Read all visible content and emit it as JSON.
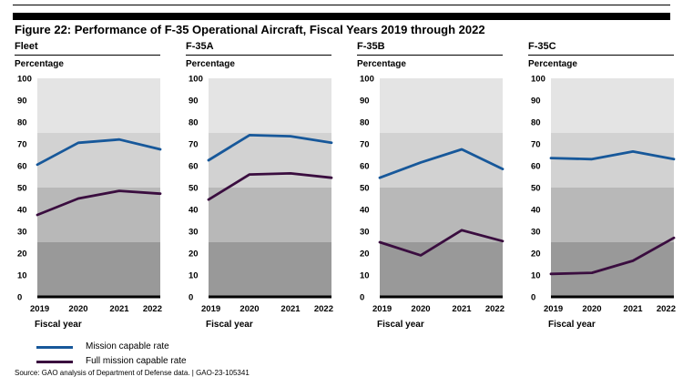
{
  "figure_title": "Figure 22: Performance of F-35 Operational Aircraft, Fiscal Years 2019 through 2022",
  "colors": {
    "mission_capable": "#17589a",
    "full_mission_capable": "#3a0d3f",
    "band_top": "#e4e4e4",
    "band_upper_mid": "#d2d2d2",
    "band_lower_mid": "#b8b8b8",
    "band_bottom": "#999999"
  },
  "legend": [
    {
      "label": "Mission capable rate",
      "color": "#17589a"
    },
    {
      "label": "Full mission capable rate",
      "color": "#3a0d3f"
    }
  ],
  "source": "Source: GAO analysis of Department of Defense data.  |  GAO-23-105341",
  "chart_data": [
    {
      "type": "line",
      "title": "Fleet",
      "ylabel": "Percentage",
      "xlabel": "Fiscal year",
      "x": [
        "2019",
        "2020",
        "2021",
        "2022"
      ],
      "ylim": [
        0,
        100
      ],
      "yticks": [
        0,
        10,
        20,
        30,
        40,
        50,
        60,
        70,
        80,
        90,
        100
      ],
      "series": [
        {
          "name": "Mission capable rate",
          "values": [
            60.5,
            70.5,
            72,
            67.5
          ]
        },
        {
          "name": "Full mission capable rate",
          "values": [
            37.5,
            45,
            48.5,
            47.2
          ]
        }
      ]
    },
    {
      "type": "line",
      "title": "F-35A",
      "ylabel": "Percentage",
      "xlabel": "Fiscal year",
      "x": [
        "2019",
        "2020",
        "2021",
        "2022"
      ],
      "ylim": [
        0,
        100
      ],
      "yticks": [
        0,
        10,
        20,
        30,
        40,
        50,
        60,
        70,
        80,
        90,
        100
      ],
      "series": [
        {
          "name": "Mission capable rate",
          "values": [
            62.5,
            74,
            73.5,
            70.5
          ]
        },
        {
          "name": "Full mission capable rate",
          "values": [
            44.5,
            56,
            56.5,
            54.5
          ]
        }
      ]
    },
    {
      "type": "line",
      "title": "F-35B",
      "ylabel": "Percentage",
      "xlabel": "Fiscal year",
      "x": [
        "2019",
        "2020",
        "2021",
        "2022"
      ],
      "ylim": [
        0,
        100
      ],
      "yticks": [
        0,
        10,
        20,
        30,
        40,
        50,
        60,
        70,
        80,
        90,
        100
      ],
      "series": [
        {
          "name": "Mission capable rate",
          "values": [
            54.5,
            61.5,
            67.5,
            58.5
          ]
        },
        {
          "name": "Full mission capable rate",
          "values": [
            25,
            19,
            30.5,
            25.5
          ]
        }
      ]
    },
    {
      "type": "line",
      "title": "F-35C",
      "ylabel": "Percentage",
      "xlabel": "Fiscal year",
      "x": [
        "2019",
        "2020",
        "2021",
        "2022"
      ],
      "ylim": [
        0,
        100
      ],
      "yticks": [
        0,
        10,
        20,
        30,
        40,
        50,
        60,
        70,
        80,
        90,
        100
      ],
      "series": [
        {
          "name": "Mission capable rate",
          "values": [
            63.5,
            63,
            66.5,
            63
          ]
        },
        {
          "name": "Full mission capable rate",
          "values": [
            10.5,
            11,
            16.5,
            27
          ]
        }
      ]
    }
  ]
}
